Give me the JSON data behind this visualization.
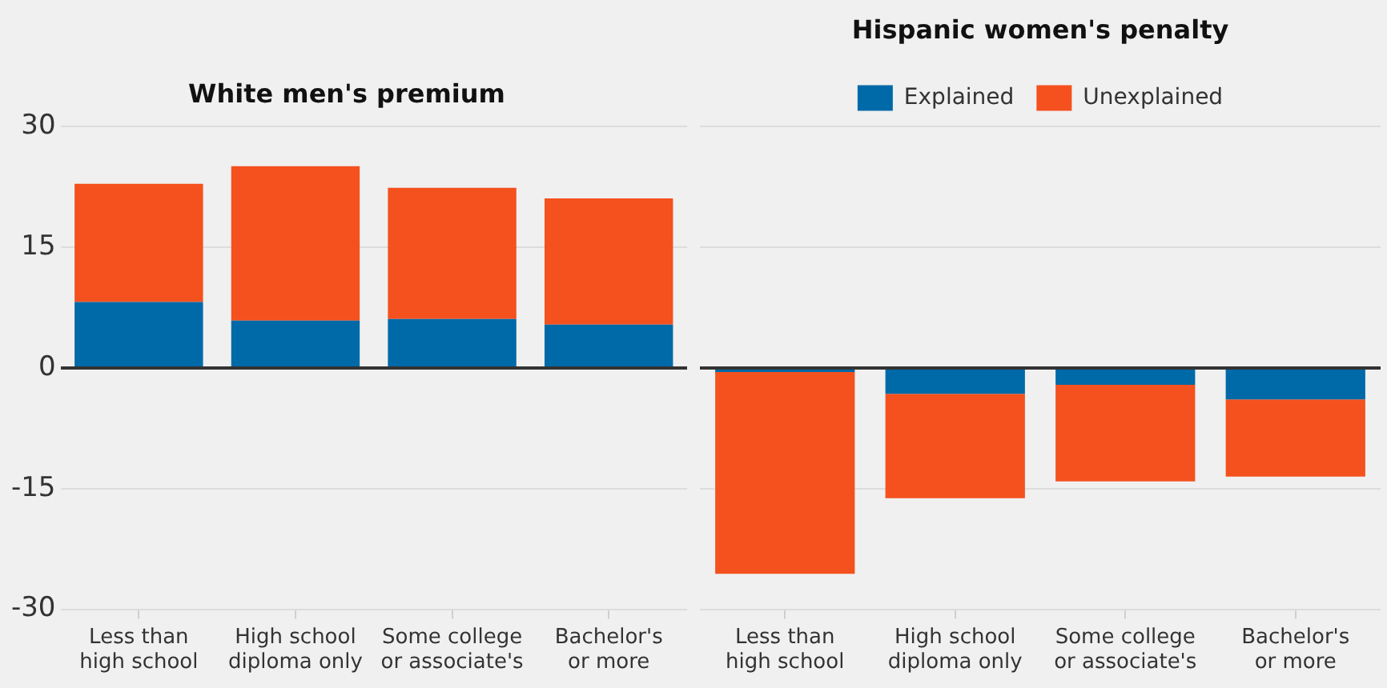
{
  "chart_data": [
    {
      "type": "bar",
      "title": "White men's premium",
      "categories": [
        "Less than high school",
        "High school diploma only",
        "Some college or associate's",
        "Bachelor's or more"
      ],
      "stacked": true,
      "series": [
        {
          "color": "#0069a8",
          "values": [
            8.2,
            5.9,
            6.1,
            5.4
          ]
        },
        {
          "color": "#f4511e",
          "values": [
            14.7,
            19.2,
            16.3,
            15.7
          ]
        }
      ],
      "ylim": [
        -30,
        30
      ],
      "yticks": [
        -30,
        -15,
        0,
        15,
        30
      ],
      "grid": "y",
      "legend": false
    },
    {
      "type": "bar",
      "title": "Hispanic women's penalty",
      "categories": [
        "Less than high school",
        "High school diploma only",
        "Some college or associate's",
        "Bachelor's or more"
      ],
      "stacked": true,
      "series": [
        {
          "name": "Explained",
          "color": "#0069a8",
          "values": [
            -0.5,
            -3.2,
            -2.1,
            -3.9
          ]
        },
        {
          "name": "Unexplained",
          "color": "#f4511e",
          "values": [
            -25.1,
            -13.0,
            -12.0,
            -9.6
          ]
        }
      ],
      "ylim": [
        -30,
        30
      ],
      "yticks": [
        -30,
        -15,
        0,
        15,
        30
      ],
      "grid": "y",
      "legend": "top",
      "tick_labels": "x"
    }
  ]
}
